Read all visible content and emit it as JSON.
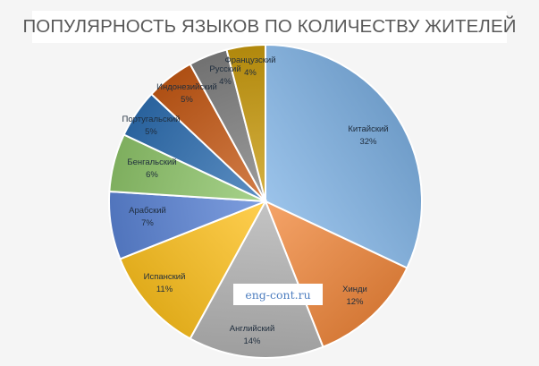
{
  "chart_data": {
    "type": "pie",
    "title": "ПОПУЛЯРНОСТЬ ЯЗЫКОВ ПО КОЛИЧЕСТВУ ЖИТЕЛЕЙ",
    "start_angle_deg": 0,
    "direction": "clockwise",
    "slices": [
      {
        "label": "Китайский",
        "value": 32,
        "value_label": "32%",
        "color": "#7fb2e4"
      },
      {
        "label": "Хинди",
        "value": 12,
        "value_label": "12%",
        "color": "#f28a3f"
      },
      {
        "label": "Английский",
        "value": 14,
        "value_label": "14%",
        "color": "#b3b3b3"
      },
      {
        "label": "Испанский",
        "value": 11,
        "value_label": "11%",
        "color": "#ffc21f"
      },
      {
        "label": "Арабский",
        "value": 7,
        "value_label": "7%",
        "color": "#5b84d6"
      },
      {
        "label": "Бенгальский",
        "value": 6,
        "value_label": "6%",
        "color": "#8fc66b"
      },
      {
        "label": "Португальский",
        "value": 5,
        "value_label": "5%",
        "color": "#2f6fb2"
      },
      {
        "label": "Индонезийский",
        "value": 5,
        "value_label": "5%",
        "color": "#c65a16"
      },
      {
        "label": "Русский",
        "value": 4,
        "value_label": "4%",
        "color": "#808080"
      },
      {
        "label": "Французский",
        "value": 4,
        "value_label": "4%",
        "color": "#c99b0e"
      }
    ]
  },
  "watermark": "eng-cont.ru"
}
